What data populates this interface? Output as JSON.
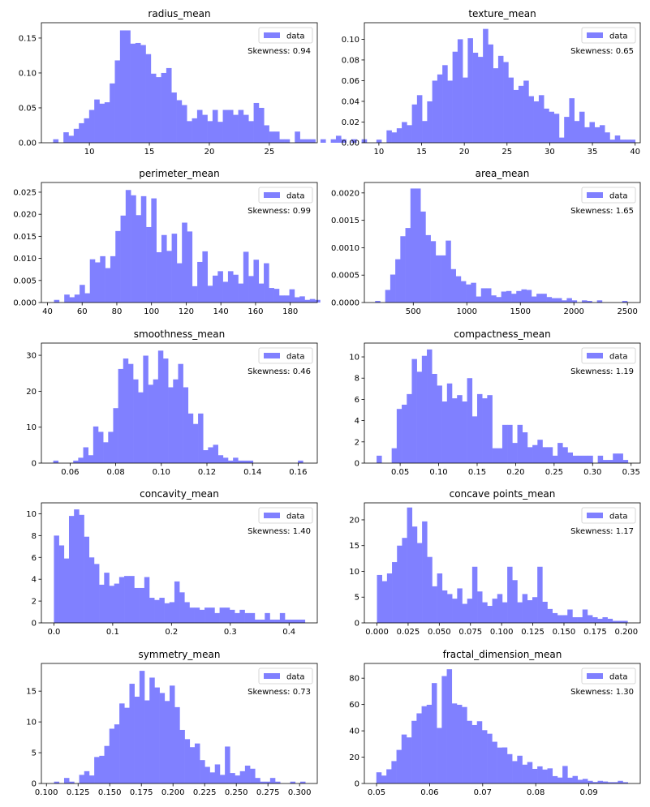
{
  "colors": {
    "bar": "#8080FF",
    "axis": "#000000",
    "legend_border": "#cccccc"
  },
  "chart_data": [
    {
      "type": "bar",
      "title": "radius_mean",
      "legend": "data",
      "skew_text": "Skewness: 0.94",
      "xlim": [
        6,
        29
      ],
      "ylim": [
        0,
        0.172
      ],
      "xticks": [
        10,
        15,
        20,
        25
      ],
      "xtick_labels": [
        "10",
        "15",
        "20",
        "25"
      ],
      "yticks": [
        0,
        0.05,
        0.1,
        0.15
      ],
      "ytick_labels": [
        "0.00",
        "0.05",
        "0.10",
        "0.15"
      ],
      "bin_start": 6.98,
      "bin_width": 0.4286,
      "values": [
        0.005,
        0,
        0.015,
        0.01,
        0.02,
        0.028,
        0.035,
        0.047,
        0.062,
        0.056,
        0.058,
        0.085,
        0.118,
        0.161,
        0.161,
        0.142,
        0.143,
        0.14,
        0.127,
        0.099,
        0.094,
        0.1,
        0.107,
        0.072,
        0.061,
        0.054,
        0.031,
        0.035,
        0.047,
        0.04,
        0.031,
        0.047,
        0.03,
        0.047,
        0.047,
        0.04,
        0.047,
        0.04,
        0.031,
        0.057,
        0.05,
        0.025,
        0.016,
        0.016,
        0.005,
        0.005,
        0,
        0.016,
        0.005,
        0.005,
        0.005,
        0,
        0.005,
        0,
        0.005,
        0.01,
        0.005,
        0,
        0.005,
        0,
        0.005,
        0,
        0,
        0,
        0,
        0,
        0,
        0,
        0,
        0.005
      ]
    },
    {
      "type": "bar",
      "title": "texture_mean",
      "legend": "data",
      "skew_text": "Skewness: 0.65",
      "xlim": [
        8.3,
        40.6
      ],
      "ylim": [
        0,
        0.116
      ],
      "xticks": [
        10,
        15,
        20,
        25,
        30,
        35,
        40
      ],
      "xtick_labels": [
        "10",
        "15",
        "20",
        "25",
        "30",
        "35",
        "40"
      ],
      "yticks": [
        0,
        0.02,
        0.04,
        0.06,
        0.08,
        0.1
      ],
      "ytick_labels": [
        "0.00",
        "0.02",
        "0.04",
        "0.06",
        "0.08",
        "0.10"
      ],
      "bin_start": 9.71,
      "bin_width": 0.594,
      "values": [
        0.003,
        0,
        0.012,
        0.01,
        0.014,
        0.02,
        0.017,
        0.037,
        0.046,
        0.021,
        0.04,
        0.06,
        0.066,
        0.075,
        0.06,
        0.088,
        0.1,
        0.063,
        0.101,
        0.087,
        0.083,
        0.11,
        0.095,
        0.072,
        0.084,
        0.078,
        0.063,
        0.051,
        0.055,
        0.06,
        0.045,
        0.04,
        0.046,
        0.033,
        0.03,
        0.028,
        0.005,
        0.025,
        0.043,
        0.021,
        0.03,
        0.015,
        0.02,
        0.015,
        0.017,
        0.01,
        0.003,
        0.007,
        0.003,
        0.003,
        0.003
      ]
    },
    {
      "type": "bar",
      "title": "perimeter_mean",
      "legend": "data",
      "skew_text": "Skewness: 0.99",
      "xlim": [
        36.5,
        195.6
      ],
      "ylim": [
        0,
        0.0272
      ],
      "xticks": [
        40,
        60,
        80,
        100,
        120,
        140,
        160,
        180
      ],
      "xtick_labels": [
        "40",
        "60",
        "80",
        "100",
        "120",
        "140",
        "160",
        "180"
      ],
      "yticks": [
        0,
        0.005,
        0.01,
        0.015,
        0.02,
        0.025
      ],
      "ytick_labels": [
        "0.000",
        "0.005",
        "0.010",
        "0.015",
        "0.020",
        "0.025"
      ],
      "bin_start": 43.79,
      "bin_width": 2.95,
      "values": [
        0.0006,
        0,
        0.0018,
        0.0012,
        0.0018,
        0.004,
        0.0021,
        0.0098,
        0.0091,
        0.0105,
        0.0078,
        0.0105,
        0.0162,
        0.0197,
        0.0255,
        0.0243,
        0.0198,
        0.0241,
        0.0171,
        0.0236,
        0.0114,
        0.0153,
        0.0117,
        0.0156,
        0.0089,
        0.0181,
        0.0161,
        0.0037,
        0.0092,
        0.0116,
        0.0038,
        0.0061,
        0.0071,
        0.0047,
        0.0071,
        0.0063,
        0.0043,
        0.0115,
        0.006,
        0.0097,
        0.0043,
        0.0089,
        0.0033,
        0.0031,
        0.0016,
        0.0016,
        0.003,
        0.0012,
        0.0014,
        0.0006,
        0.0008,
        0.0006
      ]
    },
    {
      "type": "bar",
      "title": "area_mean",
      "legend": "data",
      "skew_text": "Skewness: 1.65",
      "xlim": [
        43,
        2620
      ],
      "ylim": [
        0,
        0.00219
      ],
      "xticks": [
        500,
        1000,
        1500,
        2000,
        2500
      ],
      "xtick_labels": [
        "500",
        "1000",
        "1500",
        "2000",
        "2500"
      ],
      "yticks": [
        0,
        0.0005,
        0.001,
        0.0015,
        0.002
      ],
      "ytick_labels": [
        "0.0000",
        "0.0005",
        "0.0010",
        "0.0015",
        "0.0020"
      ],
      "bin_start": 143.5,
      "bin_width": 47.1,
      "values": [
        3e-05,
        0,
        0.00023,
        0.00051,
        0.00079,
        0.00121,
        0.00136,
        0.00208,
        0.00208,
        0.00166,
        0.00123,
        0.00112,
        0.00086,
        0.00086,
        0.00113,
        0.00061,
        0.00048,
        0.00039,
        0.00033,
        0.00036,
        0.00011,
        0.00026,
        0.00026,
        0.00013,
        0.0001,
        0.0002,
        0.00021,
        0.00016,
        0.00021,
        0.00024,
        0.00023,
        0.00011,
        0.00016,
        0.00016,
        0.0001,
        8e-05,
        8e-05,
        4e-05,
        8e-05,
        4e-05,
        0,
        4e-05,
        3e-05,
        0,
        4e-05,
        0,
        0,
        0,
        0,
        3e-05
      ]
    },
    {
      "type": "bar",
      "title": "smoothness_mean",
      "legend": "data",
      "skew_text": "Skewness: 0.46",
      "xlim": [
        0.0474,
        0.1684
      ],
      "ylim": [
        0,
        33.4
      ],
      "xticks": [
        0.06,
        0.08,
        0.1,
        0.12,
        0.14,
        0.16
      ],
      "xtick_labels": [
        "0.06",
        "0.08",
        "0.10",
        "0.12",
        "0.14",
        "0.16"
      ],
      "yticks": [
        0,
        10,
        20,
        30
      ],
      "ytick_labels": [
        "0",
        "10",
        "20",
        "30"
      ],
      "bin_start": 0.0526,
      "bin_width": 0.00219,
      "values": [
        0.7,
        0,
        0,
        0,
        0.7,
        1.5,
        4.4,
        2.2,
        10.2,
        8.7,
        5.8,
        8.7,
        15.3,
        26.2,
        29.1,
        27.6,
        23.3,
        19.7,
        29.9,
        21.8,
        23.3,
        31.3,
        29.1,
        21.1,
        23.3,
        27.6,
        21.1,
        13.8,
        10.9,
        13.8,
        3.6,
        4.4,
        5.1,
        2.2,
        1.5,
        0.7,
        1.5,
        0.7,
        0.7,
        0.7,
        0,
        0,
        0,
        0,
        0,
        0,
        0,
        0,
        0,
        0.7
      ]
    },
    {
      "type": "bar",
      "title": "compactness_mean",
      "legend": "data",
      "skew_text": "Skewness: 1.19",
      "xlim": [
        0.0035,
        0.3619
      ],
      "ylim": [
        0,
        11.3
      ],
      "xticks": [
        0.05,
        0.1,
        0.15,
        0.2,
        0.25,
        0.3,
        0.35
      ],
      "xtick_labels": [
        "0.05",
        "0.10",
        "0.15",
        "0.20",
        "0.25",
        "0.30",
        "0.35"
      ],
      "yticks": [
        0,
        2,
        4,
        6,
        8,
        10
      ],
      "ytick_labels": [
        "0",
        "2",
        "4",
        "6",
        "8",
        "10"
      ],
      "bin_start": 0.0194,
      "bin_width": 0.00653,
      "values": [
        0.7,
        0,
        0,
        1.4,
        5.1,
        5.5,
        6.5,
        9.8,
        8.6,
        10.1,
        10.7,
        8.4,
        7.3,
        5.8,
        7.5,
        6.1,
        6.4,
        5.8,
        8.0,
        4.4,
        6.5,
        6.1,
        6.4,
        1.4,
        1.4,
        3.6,
        3.6,
        1.9,
        3.6,
        2.9,
        1.5,
        1.7,
        2.2,
        1.5,
        1.5,
        0.7,
        1.9,
        1.5,
        1.0,
        0.7,
        0.7,
        0.7,
        0.7,
        0,
        0.7,
        0.3,
        0.3,
        0.9,
        0.9,
        0.3
      ]
    },
    {
      "type": "bar",
      "title": "concavity_mean",
      "legend": "data",
      "skew_text": "Skewness: 1.40",
      "xlim": [
        -0.0213,
        0.448
      ],
      "ylim": [
        0,
        11.0
      ],
      "xticks": [
        0.0,
        0.1,
        0.2,
        0.3,
        0.4
      ],
      "xtick_labels": [
        "0.0",
        "0.1",
        "0.2",
        "0.3",
        "0.4"
      ],
      "yticks": [
        0,
        2,
        4,
        6,
        8,
        10
      ],
      "ytick_labels": [
        "0",
        "2",
        "4",
        "6",
        "8",
        "10"
      ],
      "bin_start": 0.0,
      "bin_width": 0.00854,
      "values": [
        8.0,
        7.1,
        5.9,
        9.8,
        10.4,
        9.9,
        7.9,
        6.0,
        5.4,
        3.5,
        4.6,
        3.4,
        3.6,
        4.2,
        4.3,
        4.3,
        3.2,
        3.2,
        4.2,
        2.3,
        2.1,
        2.3,
        1.8,
        1.9,
        3.8,
        2.8,
        1.9,
        1.4,
        1.4,
        1.2,
        1.4,
        1.4,
        0.9,
        1.4,
        1.4,
        1.2,
        0.9,
        1.2,
        0.9,
        0.9,
        0.3,
        0.3,
        0.9,
        0.3,
        0.3,
        0.9,
        0.3,
        0.3,
        0.3,
        0.3
      ]
    },
    {
      "type": "bar",
      "title": "concave points_mean",
      "legend": "data",
      "skew_text": "Skewness: 1.17",
      "xlim": [
        -0.0101,
        0.2112
      ],
      "ylim": [
        0,
        23.3
      ],
      "xticks": [
        0.0,
        0.025,
        0.05,
        0.075,
        0.1,
        0.125,
        0.15,
        0.175,
        0.2
      ],
      "xtick_labels": [
        "0.000",
        "0.025",
        "0.050",
        "0.075",
        "0.100",
        "0.125",
        "0.150",
        "0.175",
        "0.200"
      ],
      "yticks": [
        0,
        5,
        10,
        15,
        20
      ],
      "ytick_labels": [
        "0",
        "5",
        "10",
        "15",
        "20"
      ],
      "bin_start": 0.0,
      "bin_width": 0.00402,
      "values": [
        9.3,
        8.1,
        9.6,
        11.8,
        15.0,
        16.5,
        22.4,
        18.7,
        15.5,
        19.7,
        12.8,
        7.1,
        9.6,
        6.3,
        5.6,
        4.7,
        6.7,
        3.7,
        4.7,
        10.9,
        6.1,
        4.0,
        3.3,
        4.7,
        5.6,
        4.0,
        10.9,
        8.3,
        4.0,
        5.6,
        4.4,
        5.0,
        10.9,
        4.1,
        2.7,
        1.9,
        1.5,
        1.5,
        2.6,
        1.1,
        1.1,
        2.6,
        1.5,
        1.1,
        0.8,
        1.1,
        0.8,
        0.4,
        0.4,
        0.4
      ]
    },
    {
      "type": "bar",
      "title": "symmetry_mean",
      "legend": "data",
      "skew_text": "Skewness: 0.73",
      "xlim": [
        0.096,
        0.314
      ],
      "ylim": [
        0,
        19.5
      ],
      "xticks": [
        0.1,
        0.125,
        0.15,
        0.175,
        0.2,
        0.225,
        0.25,
        0.275,
        0.3
      ],
      "xtick_labels": [
        "0.100",
        "0.125",
        "0.150",
        "0.175",
        "0.200",
        "0.225",
        "0.250",
        "0.275",
        "0.300"
      ],
      "yticks": [
        0,
        5,
        10,
        15
      ],
      "ytick_labels": [
        "0",
        "5",
        "10",
        "15"
      ],
      "bin_start": 0.106,
      "bin_width": 0.00397,
      "values": [
        0.3,
        0,
        0.9,
        0.3,
        0,
        1.4,
        2.0,
        1.3,
        4.3,
        4.5,
        6.1,
        8.9,
        9.6,
        13.0,
        12.3,
        16.2,
        14.1,
        18.3,
        13.5,
        17.2,
        15.6,
        14.7,
        13.4,
        15.9,
        12.4,
        8.7,
        7.2,
        5.9,
        6.5,
        3.8,
        2.7,
        1.8,
        3.1,
        1.4,
        6.0,
        1.7,
        1.3,
        2.0,
        2.9,
        2.4,
        0.9,
        0.3,
        0.3,
        0.9,
        0.3,
        0,
        0,
        0.3,
        0,
        0.3
      ]
    },
    {
      "type": "bar",
      "title": "fractal_dimension_mean",
      "legend": "data",
      "skew_text": "Skewness: 1.30",
      "xlim": [
        0.0477,
        0.0997
      ],
      "ylim": [
        0,
        91.2
      ],
      "xticks": [
        0.05,
        0.06,
        0.07,
        0.08,
        0.09
      ],
      "xtick_labels": [
        "0.05",
        "0.06",
        "0.07",
        "0.08",
        "0.09"
      ],
      "yticks": [
        0,
        20,
        40,
        60,
        80
      ],
      "ytick_labels": [
        "0",
        "20",
        "40",
        "60",
        "80"
      ],
      "bin_start": 0.04996,
      "bin_width": 0.000948,
      "values": [
        8.5,
        6.0,
        10.8,
        17.0,
        25.5,
        37.2,
        35.0,
        47.6,
        53.3,
        58.7,
        59.8,
        76.3,
        42.2,
        81.6,
        86.8,
        60.8,
        59.8,
        58.1,
        47.6,
        44.4,
        47.3,
        40.5,
        37.8,
        31.7,
        27.3,
        27.4,
        22.3,
        17.0,
        21.1,
        14.3,
        16.3,
        11.1,
        13.0,
        10.6,
        11.5,
        5.6,
        4.5,
        13.3,
        4.4,
        5.7,
        2.8,
        3.5,
        2.0,
        1.1,
        2.0,
        1.5,
        1.0,
        1.0,
        2.0,
        1.0
      ]
    }
  ]
}
